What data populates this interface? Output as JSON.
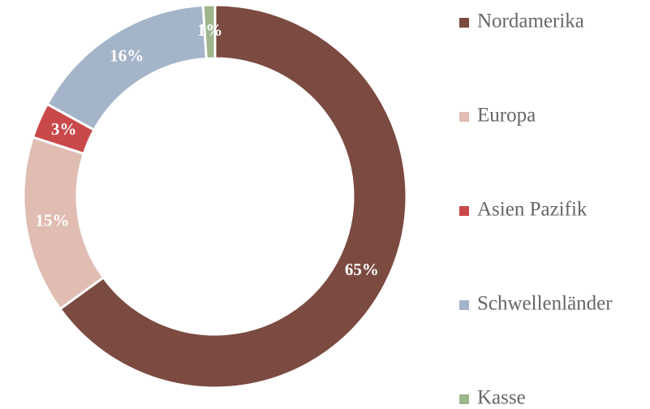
{
  "chart_data": {
    "type": "donut",
    "categories": [
      "Nordamerika",
      "Europa",
      "Asien Pazifik",
      "Schwellenländer",
      "Kasse"
    ],
    "values": [
      65,
      15,
      3,
      16,
      1
    ],
    "value_labels": [
      "65%",
      "15%",
      "3%",
      "16%",
      "1%"
    ],
    "colors": [
      "#7b4a40",
      "#e0bcb2",
      "#c9494a",
      "#a4b4c9",
      "#9db68b"
    ],
    "legend": "right"
  }
}
